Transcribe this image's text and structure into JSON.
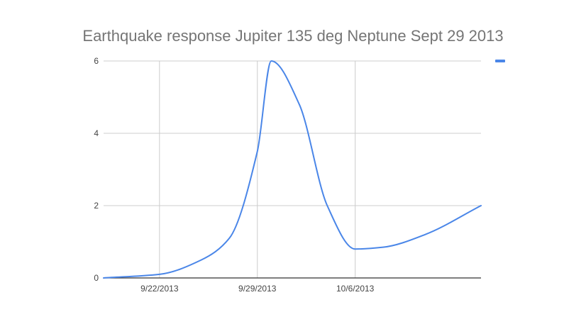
{
  "chart_data": {
    "type": "line",
    "title": "Earthquake response Jupiter 135 deg Neptune Sept 29 2013",
    "xlabel": "",
    "ylabel": "",
    "x_type": "date",
    "xlim": [
      "2013-09-18",
      "2013-10-15"
    ],
    "ylim": [
      0,
      6
    ],
    "y_ticks": [
      0,
      2,
      4,
      6
    ],
    "x_ticks": [
      {
        "date": "2013-09-22",
        "label": "9/22/2013"
      },
      {
        "date": "2013-09-29",
        "label": "9/29/2013"
      },
      {
        "date": "2013-10-06",
        "label": "10/6/2013"
      }
    ],
    "grid": true,
    "legend": "top-right",
    "series": [
      {
        "color": "#4a86e8",
        "x": [
          "2013-09-18",
          "2013-09-22",
          "2013-09-25",
          "2013-09-27",
          "2013-09-29",
          "2013-09-30",
          "2013-10-02",
          "2013-10-04",
          "2013-10-06",
          "2013-10-08",
          "2013-10-11",
          "2013-10-15"
        ],
        "values": [
          0,
          0.1,
          0.5,
          1.1,
          3.5,
          6.0,
          4.8,
          2.0,
          0.8,
          0.85,
          1.2,
          2.0
        ]
      }
    ]
  }
}
